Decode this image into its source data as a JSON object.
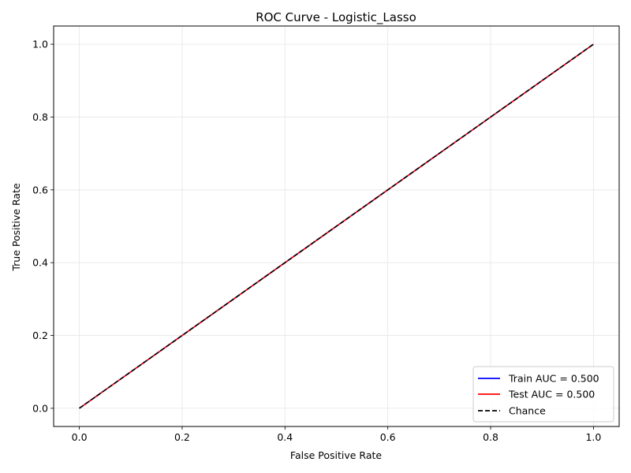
{
  "chart_data": {
    "type": "line",
    "title": "ROC Curve - Logistic_Lasso",
    "xlabel": "False Positive Rate",
    "ylabel": "True Positive Rate",
    "xlim": [
      -0.05,
      1.05
    ],
    "ylim": [
      -0.05,
      1.05
    ],
    "xticks": [
      0.0,
      0.2,
      0.4,
      0.6,
      0.8,
      1.0
    ],
    "yticks": [
      0.0,
      0.2,
      0.4,
      0.6,
      0.8,
      1.0
    ],
    "tick_labels": [
      "0.0",
      "0.2",
      "0.4",
      "0.6",
      "0.8",
      "1.0"
    ],
    "grid": true,
    "legend_position": "bottom-right",
    "series": [
      {
        "name": "Train AUC = 0.500",
        "color": "#0000ff",
        "style": "solid",
        "x": [
          0.0,
          1.0
        ],
        "y": [
          0.0,
          1.0
        ]
      },
      {
        "name": "Test AUC = 0.500",
        "color": "#ff0000",
        "style": "solid",
        "x": [
          0.0,
          1.0
        ],
        "y": [
          0.0,
          1.0
        ]
      },
      {
        "name": "Chance",
        "color": "#000000",
        "style": "dashed",
        "x": [
          0.0,
          1.0
        ],
        "y": [
          0.0,
          1.0
        ]
      }
    ]
  }
}
